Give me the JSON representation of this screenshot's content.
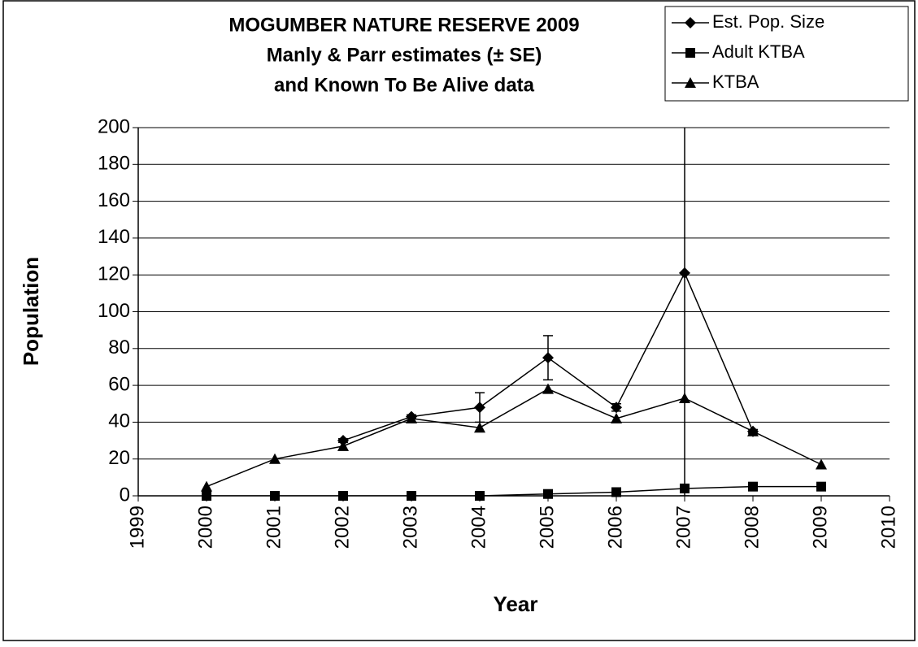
{
  "chart_data": {
    "type": "line",
    "title": [
      "MOGUMBER NATURE RESERVE 2009",
      "Manly & Parr estimates (± SE)",
      "and Known To Be Alive data"
    ],
    "x_label": "Year",
    "y_label": "Population",
    "x": [
      2000,
      2001,
      2002,
      2003,
      2004,
      2005,
      2006,
      2007,
      2008,
      2009
    ],
    "series": [
      {
        "name": "Est. Pop. Size",
        "color": "#000000",
        "marker": "diamond",
        "values": [
          null,
          null,
          30,
          43,
          48,
          75,
          48,
          121,
          35,
          null
        ],
        "errors": [
          null,
          null,
          1,
          1,
          8,
          12,
          2,
          121,
          1,
          null
        ]
      },
      {
        "name": "Adult KTBA",
        "color": "#000000",
        "marker": "square",
        "values": [
          0,
          0,
          0,
          0,
          0,
          1,
          2,
          4,
          5,
          5
        ]
      },
      {
        "name": "KTBA",
        "color": "#000000",
        "marker": "triangle",
        "values": [
          5,
          20,
          27,
          42,
          37,
          58,
          42,
          53,
          35,
          17
        ]
      }
    ],
    "xlim": [
      1999,
      2010
    ],
    "xticks": [
      1999,
      2000,
      2001,
      2002,
      2003,
      2004,
      2005,
      2006,
      2007,
      2008,
      2009,
      2010
    ],
    "ylim": [
      0,
      200
    ],
    "yticks": [
      0,
      20,
      40,
      60,
      80,
      100,
      120,
      140,
      160,
      180,
      200
    ],
    "grid": true,
    "legend": "top-right"
  }
}
